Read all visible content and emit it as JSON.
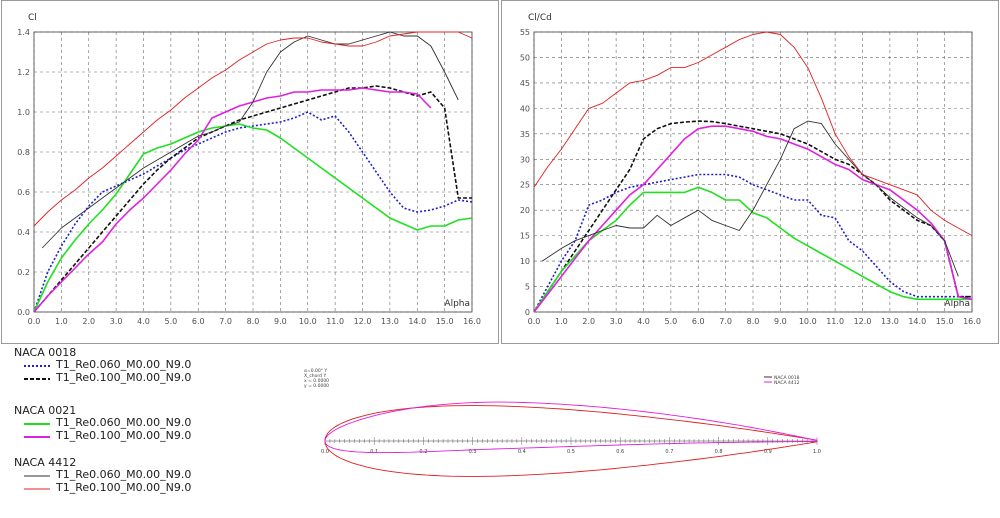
{
  "chart_data": [
    {
      "type": "line",
      "ylabel": "Cl",
      "xlabel": "Alpha",
      "xlim": [
        0,
        16
      ],
      "ylim": [
        0,
        1.4
      ],
      "xticks": [
        "0.0",
        "1.0",
        "2.0",
        "3.0",
        "4.0",
        "5.0",
        "6.0",
        "7.0",
        "8.0",
        "9.0",
        "10.0",
        "11.0",
        "12.0",
        "13.0",
        "14.0",
        "15.0",
        "16.0"
      ],
      "yticks": [
        "0.0",
        "0.2",
        "0.4",
        "0.6",
        "0.8",
        "1.0",
        "1.2",
        "1.4"
      ],
      "grid": true,
      "series": [
        {
          "name": "T1_Re0.060_M0.00_N9.0",
          "foil": "NACA 0018",
          "color": "#1f1fd0",
          "dash": "dot",
          "x": [
            0,
            0.5,
            1,
            1.5,
            2,
            2.5,
            3,
            3.5,
            4,
            4.5,
            5,
            5.5,
            6,
            6.5,
            7,
            7.5,
            8,
            8.5,
            9,
            9.5,
            10,
            10.5,
            11,
            11.5,
            12,
            12.5,
            13,
            13.5,
            14,
            14.5,
            15,
            15.5,
            16
          ],
          "y": [
            0,
            0.2,
            0.33,
            0.44,
            0.53,
            0.6,
            0.63,
            0.66,
            0.69,
            0.73,
            0.77,
            0.81,
            0.84,
            0.87,
            0.9,
            0.92,
            0.93,
            0.94,
            0.95,
            0.97,
            1.0,
            0.96,
            0.98,
            0.9,
            0.8,
            0.7,
            0.6,
            0.52,
            0.5,
            0.51,
            0.53,
            0.56,
            0.55
          ]
        },
        {
          "name": "T1_Re0.100_M0.00_N9.0",
          "foil": "NACA 0018",
          "color": "#101010",
          "dash": "dash",
          "x": [
            0,
            0.5,
            1,
            1.5,
            2,
            2.5,
            3,
            3.5,
            4,
            4.5,
            5,
            5.5,
            6,
            6.5,
            7,
            7.5,
            8,
            8.5,
            9,
            9.5,
            10,
            10.5,
            11,
            11.5,
            12,
            12.5,
            13,
            13.5,
            14,
            14.5,
            15,
            15.5,
            16
          ],
          "y": [
            0,
            0.08,
            0.16,
            0.24,
            0.32,
            0.4,
            0.48,
            0.56,
            0.64,
            0.71,
            0.77,
            0.82,
            0.87,
            0.9,
            0.93,
            0.96,
            0.98,
            1.0,
            1.02,
            1.04,
            1.06,
            1.08,
            1.1,
            1.12,
            1.12,
            1.13,
            1.12,
            1.1,
            1.08,
            1.1,
            1.02,
            0.57,
            0.57
          ]
        },
        {
          "name": "T1_Re0.060_M0.00_N9.0",
          "foil": "NACA 0021",
          "color": "#20e020",
          "dash": "solid",
          "x": [
            0,
            0.5,
            1,
            1.5,
            2,
            2.5,
            3,
            3.5,
            4,
            4.5,
            5,
            5.5,
            6,
            6.5,
            7,
            7.5,
            8,
            8.5,
            9,
            9.5,
            10,
            10.5,
            11,
            11.5,
            12,
            12.5,
            13,
            13.5,
            14,
            14.5,
            15,
            15.5,
            16
          ],
          "y": [
            0,
            0.15,
            0.27,
            0.36,
            0.44,
            0.51,
            0.59,
            0.69,
            0.79,
            0.82,
            0.84,
            0.87,
            0.9,
            0.92,
            0.93,
            0.94,
            0.92,
            0.91,
            0.87,
            0.82,
            0.77,
            0.72,
            0.67,
            0.62,
            0.57,
            0.52,
            0.47,
            0.44,
            0.41,
            0.43,
            0.43,
            0.46,
            0.47
          ]
        },
        {
          "name": "T1_Re0.100_M0.00_N9.0",
          "foil": "NACA 0021",
          "color": "#e020e0",
          "dash": "solid",
          "x": [
            0,
            0.5,
            1,
            1.5,
            2,
            2.5,
            3,
            3.5,
            4,
            4.5,
            5,
            5.5,
            6,
            6.5,
            7,
            7.5,
            8,
            8.5,
            9,
            9.5,
            10,
            10.5,
            11,
            11.5,
            12,
            12.5,
            13,
            13.5,
            14,
            14.5
          ],
          "y": [
            0,
            0.08,
            0.15,
            0.22,
            0.29,
            0.35,
            0.44,
            0.51,
            0.57,
            0.64,
            0.71,
            0.79,
            0.86,
            0.97,
            1.0,
            1.03,
            1.05,
            1.07,
            1.08,
            1.1,
            1.1,
            1.11,
            1.11,
            1.11,
            1.12,
            1.11,
            1.1,
            1.1,
            1.09,
            1.02
          ]
        },
        {
          "name": "T1_Re0.060_M0.00_N9.0",
          "foil": "NACA 4412",
          "color": "#303030",
          "dash": "solid",
          "x": [
            0.3,
            1,
            1.5,
            2,
            2.5,
            3,
            3.5,
            4,
            4.5,
            5,
            5.5,
            6,
            6.5,
            7,
            7.5,
            8,
            8.5,
            9,
            9.5,
            10,
            10.5,
            11,
            11.5,
            12,
            12.5,
            13,
            13.5,
            14,
            14.5,
            15,
            15.5
          ],
          "y": [
            0.32,
            0.42,
            0.47,
            0.52,
            0.57,
            0.62,
            0.67,
            0.72,
            0.76,
            0.8,
            0.84,
            0.88,
            0.9,
            0.93,
            0.95,
            1.05,
            1.2,
            1.3,
            1.35,
            1.38,
            1.36,
            1.34,
            1.34,
            1.36,
            1.38,
            1.4,
            1.38,
            1.38,
            1.33,
            1.2,
            1.06
          ]
        },
        {
          "name": "T1_Re0.100_M0.00_N9.0",
          "foil": "NACA 4412",
          "color": "#e02020",
          "dash": "solid",
          "x": [
            0,
            0.5,
            1,
            1.5,
            2,
            2.5,
            3,
            3.5,
            4,
            4.5,
            5,
            5.5,
            6,
            6.5,
            7,
            7.5,
            8,
            8.5,
            9,
            9.5,
            10,
            10.5,
            11,
            11.5,
            12,
            12.5,
            13,
            13.5,
            14,
            14.5,
            15,
            15.5,
            16
          ],
          "y": [
            0.43,
            0.5,
            0.56,
            0.61,
            0.67,
            0.72,
            0.78,
            0.84,
            0.9,
            0.96,
            1.01,
            1.07,
            1.12,
            1.17,
            1.21,
            1.26,
            1.3,
            1.34,
            1.36,
            1.37,
            1.37,
            1.35,
            1.34,
            1.33,
            1.33,
            1.35,
            1.38,
            1.39,
            1.4,
            1.4,
            1.4,
            1.4,
            1.37
          ]
        }
      ]
    },
    {
      "type": "line",
      "ylabel": "Cl/Cd",
      "xlabel": "Alpha",
      "xlim": [
        0,
        16
      ],
      "ylim": [
        0,
        55
      ],
      "xticks": [
        "0.0",
        "1.0",
        "2.0",
        "3.0",
        "4.0",
        "5.0",
        "6.0",
        "7.0",
        "8.0",
        "9.0",
        "10.0",
        "11.0",
        "12.0",
        "13.0",
        "14.0",
        "15.0",
        "16.0"
      ],
      "yticks": [
        "0",
        "5",
        "10",
        "15",
        "20",
        "25",
        "30",
        "35",
        "40",
        "45",
        "50",
        "55"
      ],
      "grid": true,
      "series": [
        {
          "name": "T1_Re0.060_M0.00_N9.0",
          "foil": "NACA 0018",
          "color": "#1f1fd0",
          "dash": "dot",
          "x": [
            0,
            0.5,
            1,
            1.5,
            2,
            2.5,
            3,
            3.5,
            4,
            4.5,
            5,
            5.5,
            6,
            6.5,
            7,
            7.5,
            8,
            8.5,
            9,
            9.5,
            10,
            10.5,
            11,
            11.5,
            12,
            12.5,
            13,
            13.5,
            14,
            14.5,
            15,
            15.5,
            16
          ],
          "y": [
            0,
            5,
            10,
            14,
            21,
            22,
            23.5,
            24.5,
            25,
            25.5,
            26,
            26.5,
            27,
            27,
            27,
            26.5,
            25,
            24,
            23,
            22,
            22,
            19,
            18.5,
            14,
            12,
            9,
            6,
            4,
            3,
            3,
            3,
            3,
            3
          ]
        },
        {
          "name": "T1_Re0.100_M0.00_N9.0",
          "foil": "NACA 0018",
          "color": "#101010",
          "dash": "dash",
          "x": [
            0,
            0.5,
            1,
            1.5,
            2,
            2.5,
            3,
            3.5,
            4,
            4.5,
            5,
            5.5,
            6,
            6.5,
            7,
            7.5,
            8,
            8.5,
            9,
            9.5,
            10,
            10.5,
            11,
            11.5,
            12,
            12.5,
            13,
            13.5,
            14,
            14.5,
            15,
            15.5,
            16
          ],
          "y": [
            0,
            4,
            8,
            12,
            16,
            20,
            24,
            28,
            34,
            36,
            37,
            37.3,
            37.5,
            37.4,
            37,
            36.5,
            36,
            35.5,
            35,
            34,
            33,
            31.5,
            30,
            29,
            27,
            25,
            22,
            20,
            18,
            17,
            14,
            3,
            3
          ]
        },
        {
          "name": "T1_Re0.060_M0.00_N9.0",
          "foil": "NACA 0021",
          "color": "#20e020",
          "dash": "solid",
          "x": [
            0,
            0.5,
            1,
            1.5,
            2,
            2.5,
            3,
            3.5,
            4,
            4.5,
            5,
            5.5,
            6,
            6.5,
            7,
            7.5,
            8,
            8.5,
            9,
            9.5,
            10,
            10.5,
            11,
            11.5,
            12,
            12.5,
            13,
            13.5,
            14,
            14.5,
            15,
            15.5,
            16
          ],
          "y": [
            0,
            4,
            8,
            11,
            14,
            16,
            18,
            21,
            23.5,
            23.5,
            23.5,
            23.5,
            24.5,
            23.5,
            22,
            22,
            19.5,
            18.5,
            16.5,
            14.5,
            13,
            11.5,
            10,
            8.5,
            7,
            5.5,
            4,
            3,
            2.5,
            2.5,
            2.5,
            2.5,
            2.5
          ]
        },
        {
          "name": "T1_Re0.100_M0.00_N9.0",
          "foil": "NACA 0021",
          "color": "#e020e0",
          "dash": "solid",
          "x": [
            0,
            0.5,
            1,
            1.5,
            2,
            2.5,
            3,
            3.5,
            4,
            4.5,
            5,
            5.5,
            6,
            6.5,
            7,
            7.5,
            8,
            8.5,
            9,
            9.5,
            10,
            10.5,
            11,
            11.5,
            12,
            12.5,
            13,
            13.5,
            14,
            14.5,
            15,
            15.5,
            16
          ],
          "y": [
            0,
            3.5,
            7,
            10.5,
            14,
            17,
            20,
            23,
            25,
            28,
            31,
            34,
            36,
            36.5,
            36.5,
            36,
            35.5,
            34.5,
            34,
            33,
            32,
            30.5,
            29,
            28,
            26,
            25,
            24,
            22,
            20,
            17.5,
            14,
            3,
            2.5
          ]
        },
        {
          "name": "T1_Re0.060_M0.00_N9.0",
          "foil": "NACA 4412",
          "color": "#303030",
          "dash": "solid",
          "x": [
            0.3,
            1,
            1.5,
            2,
            2.5,
            3,
            3.5,
            4,
            4.5,
            5,
            5.5,
            6,
            6.5,
            7,
            7.5,
            8,
            8.5,
            9,
            9.5,
            10,
            10.5,
            11,
            11.5,
            12,
            12.5,
            13,
            13.5,
            14,
            14.5,
            15,
            15.5
          ],
          "y": [
            10,
            12.5,
            14,
            15,
            16,
            17,
            16.5,
            16.5,
            19,
            17,
            18.5,
            20,
            18,
            17,
            16,
            20,
            25,
            30,
            36,
            37.5,
            37,
            33,
            30,
            27,
            25,
            22.5,
            20.5,
            18.5,
            17,
            14,
            7
          ]
        },
        {
          "name": "T1_Re0.100_M0.00_N9.0",
          "foil": "NACA 4412",
          "color": "#e02020",
          "dash": "solid",
          "x": [
            0,
            0.5,
            1,
            1.5,
            2,
            2.5,
            3,
            3.5,
            4,
            4.5,
            5,
            5.5,
            6,
            6.5,
            7,
            7.5,
            8,
            8.5,
            9,
            9.5,
            10,
            10.5,
            11,
            11.5,
            12,
            12.5,
            13,
            13.5,
            14,
            14.5,
            15,
            15.5,
            16
          ],
          "y": [
            24.5,
            28.5,
            32,
            36,
            40,
            41,
            43,
            45,
            45.5,
            46.5,
            48,
            48,
            49,
            50.5,
            52,
            53.5,
            54.5,
            55,
            54.5,
            52,
            48,
            42,
            35,
            30.5,
            27,
            26,
            25,
            24,
            23,
            20,
            18,
            16.5,
            15
          ]
        }
      ]
    }
  ],
  "legend": {
    "groups": [
      {
        "title": "NACA 0018",
        "entries": [
          {
            "label": "T1_Re0.060_M0.00_N9.0",
            "color": "#1f1fd0",
            "dash": "dot"
          },
          {
            "label": "T1_Re0.100_M0.00_N9.0",
            "color": "#101010",
            "dash": "dash"
          }
        ]
      },
      {
        "title": "NACA 0021",
        "entries": [
          {
            "label": "T1_Re0.060_M0.00_N9.0",
            "color": "#20e020",
            "dash": "solid"
          },
          {
            "label": "T1_Re0.100_M0.00_N9.0",
            "color": "#e020e0",
            "dash": "solid"
          }
        ]
      },
      {
        "title": "NACA 4412",
        "entries": [
          {
            "label": "T1_Re0.060_M0.00_N9.0",
            "color": "#303030",
            "dash": "solid"
          },
          {
            "label": "T1_Re0.100_M0.00_N9.0",
            "color": "#e02020",
            "dash": "solid"
          }
        ]
      }
    ]
  },
  "foil_view": {
    "legend": [
      {
        "label": "NACA 0018",
        "color": "#303030"
      },
      {
        "label": "NACA 4412",
        "color": "#e020e0"
      }
    ],
    "info_lines": [
      "α=0.00° Y",
      "X_chord Y",
      "x = 0.0000",
      "y = 0.0000"
    ],
    "ticks": [
      "0.0",
      "0.1",
      "0.2",
      "0.3",
      "0.4",
      "0.5",
      "0.6",
      "0.7",
      "0.8",
      "0.9",
      "1.0"
    ],
    "curve_colors": [
      "#e02020",
      "#e020e0"
    ]
  }
}
